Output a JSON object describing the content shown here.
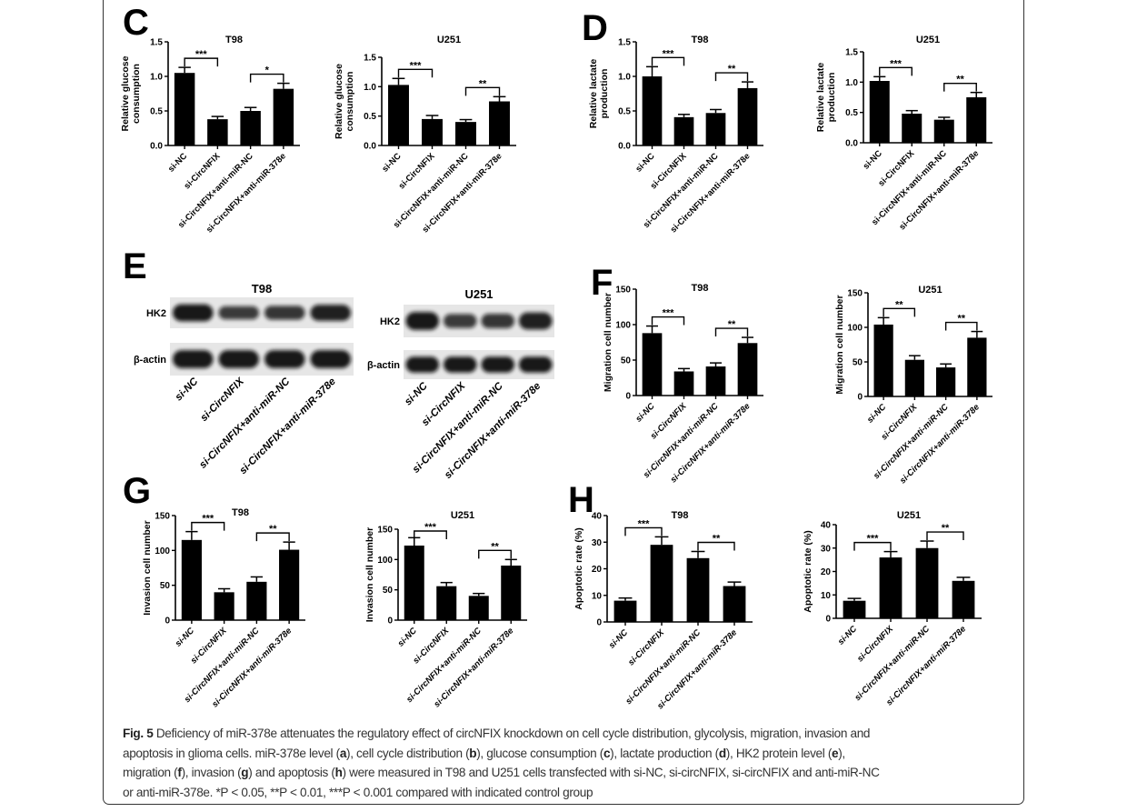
{
  "panel_letters": [
    "C",
    "D",
    "E",
    "F",
    "G",
    "H"
  ],
  "groups": [
    "si-NC",
    "si-CircNFIX",
    "si-CircNFIX+anti-miR-NC",
    "si-CircNFIX+anti-miR-378e"
  ],
  "colors": {
    "bar": "#000000",
    "text": "#111111",
    "caption": "#333333"
  },
  "western_blot": {
    "panel": "E",
    "blots": [
      {
        "title": "T98",
        "rows": [
          {
            "label": "HK2",
            "intensity": [
              1.0,
              0.6,
              0.65,
              0.9
            ]
          },
          {
            "label": "β-actin",
            "intensity": [
              1.0,
              1.0,
              1.0,
              1.0
            ]
          }
        ]
      },
      {
        "title": "U251",
        "rows": [
          {
            "label": "HK2",
            "intensity": [
              1.0,
              0.6,
              0.65,
              0.9
            ]
          },
          {
            "label": "β-actin",
            "intensity": [
              1.0,
              1.0,
              1.0,
              1.0
            ]
          }
        ]
      }
    ]
  },
  "chart_data": [
    {
      "panel": "C",
      "type": "bar",
      "title": "T98",
      "ylabel": [
        "Relative glucose",
        "consumption"
      ],
      "ylim": [
        0,
        1.5
      ],
      "yticks": [
        0,
        0.5,
        1.0,
        1.5
      ],
      "tick_format": "0.0",
      "categories": [
        "si-NC",
        "si-CircNFIX",
        "si-CircNFIX+anti-miR-NC",
        "si-CircNFIX+anti-miR-378e"
      ],
      "values": [
        1.05,
        0.38,
        0.5,
        0.82
      ],
      "errors": [
        0.08,
        0.04,
        0.05,
        0.08
      ],
      "significance": [
        {
          "from": 0,
          "to": 1,
          "label": "***"
        },
        {
          "from": 2,
          "to": 3,
          "label": "*"
        }
      ]
    },
    {
      "panel": "C",
      "type": "bar",
      "title": "U251",
      "ylabel": [
        "Relative glucose",
        "consumption"
      ],
      "ylim": [
        0,
        1.5
      ],
      "yticks": [
        0,
        0.5,
        1.0,
        1.5
      ],
      "tick_format": "0.0",
      "categories": [
        "si-NC",
        "si-CircNFIX",
        "si-CircNFIX+anti-miR-NC",
        "si-CircNFIX+anti-miR-378e"
      ],
      "values": [
        1.03,
        0.45,
        0.4,
        0.75
      ],
      "errors": [
        0.11,
        0.06,
        0.04,
        0.08
      ],
      "significance": [
        {
          "from": 0,
          "to": 1,
          "label": "***"
        },
        {
          "from": 2,
          "to": 3,
          "label": "**"
        }
      ]
    },
    {
      "panel": "D",
      "type": "bar",
      "title": "T98",
      "ylabel": [
        "Relative lactate",
        "production"
      ],
      "ylim": [
        0,
        1.5
      ],
      "yticks": [
        0,
        0.5,
        1.0,
        1.5
      ],
      "tick_format": "0.0",
      "categories": [
        "si-NC",
        "si-CircNFIX",
        "si-CircNFIX+anti-miR-NC",
        "si-CircNFIX+anti-miR-378e"
      ],
      "values": [
        1.0,
        0.41,
        0.47,
        0.83
      ],
      "errors": [
        0.14,
        0.04,
        0.05,
        0.09
      ],
      "significance": [
        {
          "from": 0,
          "to": 1,
          "label": "***"
        },
        {
          "from": 2,
          "to": 3,
          "label": "**"
        }
      ]
    },
    {
      "panel": "D",
      "type": "bar",
      "title": "U251",
      "ylabel": [
        "Relative lactate",
        "production"
      ],
      "ylim": [
        0,
        1.5
      ],
      "yticks": [
        0,
        0.5,
        1.0,
        1.5
      ],
      "tick_format": "0.0",
      "categories": [
        "si-NC",
        "si-CircNFIX",
        "si-CircNFIX+anti-miR-NC",
        "si-CircNFIX+anti-miR-378e"
      ],
      "values": [
        1.02,
        0.48,
        0.38,
        0.75
      ],
      "errors": [
        0.07,
        0.05,
        0.04,
        0.08
      ],
      "significance": [
        {
          "from": 0,
          "to": 1,
          "label": "***"
        },
        {
          "from": 2,
          "to": 3,
          "label": "**"
        }
      ]
    },
    {
      "panel": "F",
      "type": "bar",
      "title": "T98",
      "ylabel": [
        "Migration cell number"
      ],
      "ylim": [
        0,
        150
      ],
      "yticks": [
        0,
        50,
        100,
        150
      ],
      "tick_format": "0",
      "categories": [
        "si-NC",
        "si-CircNFIX",
        "si-CircNFIX+anti-miR-NC",
        "si-CircNFIX+anti-miR-378e"
      ],
      "values": [
        88,
        34,
        41,
        74
      ],
      "errors": [
        10,
        4,
        5,
        8
      ],
      "significance": [
        {
          "from": 0,
          "to": 1,
          "label": "***"
        },
        {
          "from": 2,
          "to": 3,
          "label": "**"
        }
      ]
    },
    {
      "panel": "F",
      "type": "bar",
      "title": "U251",
      "ylabel": [
        "Migration cell number"
      ],
      "ylim": [
        0,
        150
      ],
      "yticks": [
        0,
        50,
        100,
        150
      ],
      "tick_format": "0",
      "categories": [
        "si-NC",
        "si-CircNFIX",
        "si-CircNFIX+anti-miR-NC",
        "si-CircNFIX+anti-miR-378e"
      ],
      "values": [
        104,
        53,
        42,
        85
      ],
      "errors": [
        10,
        6,
        5,
        9
      ],
      "significance": [
        {
          "from": 0,
          "to": 1,
          "label": "**"
        },
        {
          "from": 2,
          "to": 3,
          "label": "**"
        }
      ]
    },
    {
      "panel": "G",
      "type": "bar",
      "title": "T98",
      "ylabel": [
        "Invasion cell number"
      ],
      "ylim": [
        0,
        150
      ],
      "yticks": [
        0,
        50,
        100,
        150
      ],
      "tick_format": "0",
      "categories": [
        "si-NC",
        "si-CircNFIX",
        "si-CircNFIX+anti-miR-NC",
        "si-CircNFIX+anti-miR-378e"
      ],
      "values": [
        115,
        40,
        55,
        101
      ],
      "errors": [
        12,
        5,
        7,
        11
      ],
      "significance": [
        {
          "from": 0,
          "to": 1,
          "label": "***"
        },
        {
          "from": 2,
          "to": 3,
          "label": "**"
        }
      ]
    },
    {
      "panel": "G",
      "type": "bar",
      "title": "U251",
      "ylabel": [
        "Invasion cell number"
      ],
      "ylim": [
        0,
        150
      ],
      "yticks": [
        0,
        50,
        100,
        150
      ],
      "tick_format": "0",
      "categories": [
        "si-NC",
        "si-CircNFIX",
        "si-CircNFIX+anti-miR-NC",
        "si-CircNFIX+anti-miR-378e"
      ],
      "values": [
        123,
        56,
        40,
        90
      ],
      "errors": [
        13,
        6,
        4,
        10
      ],
      "significance": [
        {
          "from": 0,
          "to": 1,
          "label": "***"
        },
        {
          "from": 2,
          "to": 3,
          "label": "**"
        }
      ]
    },
    {
      "panel": "H",
      "type": "bar",
      "title": "T98",
      "ylabel": [
        "Apoptotic rate (%)"
      ],
      "ylim": [
        0,
        40
      ],
      "yticks": [
        0,
        10,
        20,
        30,
        40
      ],
      "tick_format": "0",
      "categories": [
        "si-NC",
        "si-CircNFIX",
        "si-CircNFIX+anti-miR-NC",
        "si-CircNFIX+anti-miR-378e"
      ],
      "values": [
        8,
        29,
        24,
        13.5
      ],
      "errors": [
        1,
        3,
        2.5,
        1.5
      ],
      "significance": [
        {
          "from": 0,
          "to": 1,
          "label": "***"
        },
        {
          "from": 2,
          "to": 3,
          "label": "**"
        }
      ]
    },
    {
      "panel": "H",
      "type": "bar",
      "title": "U251",
      "ylabel": [
        "Apoptotic rate (%)"
      ],
      "ylim": [
        0,
        40
      ],
      "yticks": [
        0,
        10,
        20,
        30,
        40
      ],
      "tick_format": "0",
      "categories": [
        "si-NC",
        "si-CircNFIX",
        "si-CircNFIX+anti-miR-NC",
        "si-CircNFIX+anti-miR-378e"
      ],
      "values": [
        7.5,
        26,
        30,
        16
      ],
      "errors": [
        1,
        2.5,
        3,
        1.5
      ],
      "significance": [
        {
          "from": 0,
          "to": 1,
          "label": "***"
        },
        {
          "from": 2,
          "to": 3,
          "label": "**"
        }
      ]
    }
  ],
  "caption": {
    "lines": [
      [
        {
          "t": "Fig. 5",
          "b": true
        },
        {
          "t": " Deficiency of miR-378e attenuates the regulatory effect of circNFIX knockdown on cell cycle distribution, glycolysis, migration, invasion and"
        }
      ],
      [
        {
          "t": "apoptosis in glioma cells. miR-378e level ("
        },
        {
          "t": "a",
          "b": true
        },
        {
          "t": "), cell cycle distribution ("
        },
        {
          "t": "b",
          "b": true
        },
        {
          "t": "), glucose consumption ("
        },
        {
          "t": "c",
          "b": true
        },
        {
          "t": "), lactate production ("
        },
        {
          "t": "d",
          "b": true
        },
        {
          "t": "), HK2 protein level ("
        },
        {
          "t": "e",
          "b": true
        },
        {
          "t": "),"
        }
      ],
      [
        {
          "t": "migration ("
        },
        {
          "t": "f",
          "b": true
        },
        {
          "t": "), invasion ("
        },
        {
          "t": "g",
          "b": true
        },
        {
          "t": ") and apoptosis ("
        },
        {
          "t": "h",
          "b": true
        },
        {
          "t": ") were measured in T98 and U251 cells transfected with si-NC, si-circNFIX, si-circNFIX and anti-miR-NC"
        }
      ],
      [
        {
          "t": "or anti-miR-378e. *P < 0.05, **P < 0.01, ***P < 0.001 compared with indicated control group"
        }
      ]
    ]
  }
}
